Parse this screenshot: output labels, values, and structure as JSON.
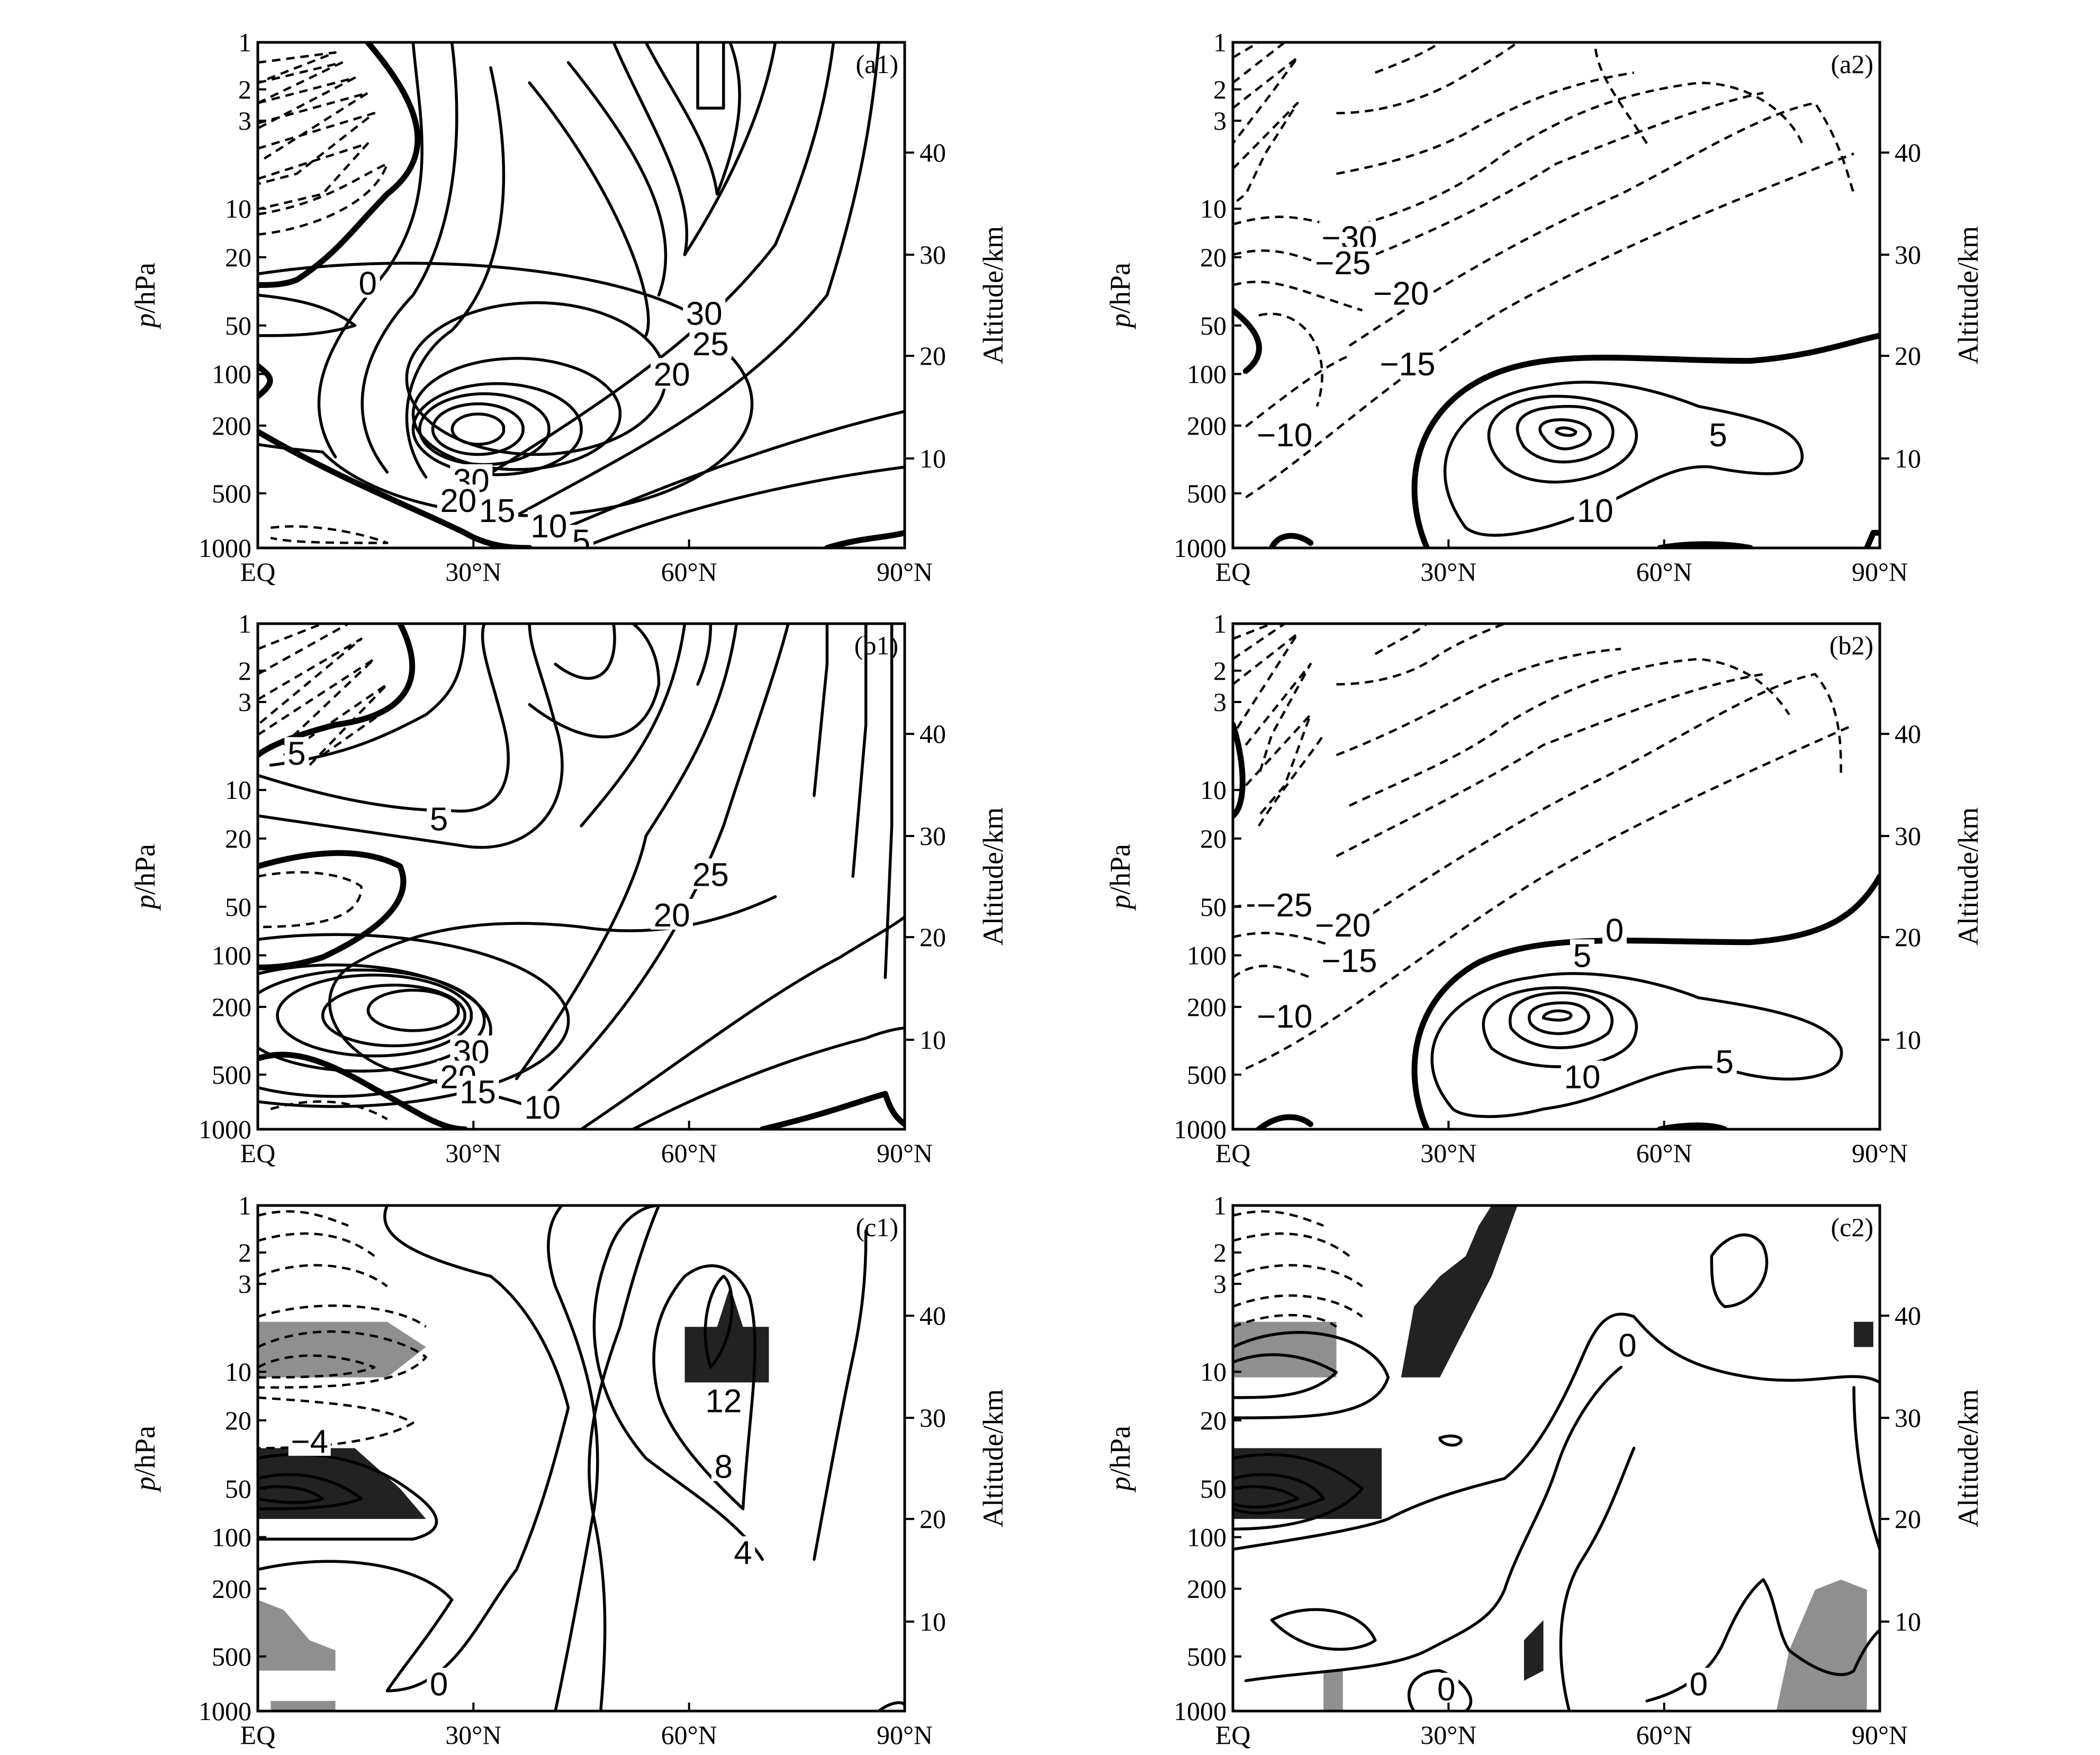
{
  "chart_data": [
    {
      "id": "a1",
      "type": "contour",
      "panel_label": "(a1)",
      "xlabel": "",
      "ylabel": "p/hPa",
      "y2label": "Altitude/km",
      "x_ticks": [
        "EQ",
        "30°N",
        "60°N",
        "90°N"
      ],
      "y_ticks": [
        "1",
        "2",
        "3",
        "10",
        "20",
        "50",
        "100",
        "200",
        "500",
        "1000"
      ],
      "y2_ticks": [
        "10",
        "20",
        "30",
        "40"
      ],
      "xlim": [
        0,
        90
      ],
      "ylim": [
        1000,
        1
      ],
      "y_scale": "log",
      "contour_interval": 5,
      "negative_style": "dashed",
      "zero_style": "thick",
      "contour_labels": [
        "0",
        "30",
        "25",
        "20",
        "30",
        "20",
        "15",
        "10",
        "5"
      ],
      "jet_max": {
        "lat": 30,
        "p": 200,
        "value_min": 30
      }
    },
    {
      "id": "a2",
      "type": "contour",
      "panel_label": "(a2)",
      "xlabel": "",
      "ylabel": "p/hPa",
      "y2label": "Altitude/km",
      "x_ticks": [
        "EQ",
        "30°N",
        "60°N",
        "90°N"
      ],
      "y_ticks": [
        "1",
        "2",
        "3",
        "10",
        "20",
        "50",
        "100",
        "200",
        "500",
        "1000"
      ],
      "y2_ticks": [
        "10",
        "20",
        "30",
        "40"
      ],
      "xlim": [
        0,
        90
      ],
      "ylim": [
        1000,
        1
      ],
      "y_scale": "log",
      "contour_interval": 5,
      "negative_style": "dashed",
      "zero_style": "thick",
      "contour_labels": [
        "−30",
        "−25",
        "−20",
        "−15",
        "−10",
        "5",
        "10"
      ],
      "jet_max": {
        "lat": 43,
        "p": 200,
        "value_min": 15
      }
    },
    {
      "id": "b1",
      "type": "contour",
      "panel_label": "(b1)",
      "xlabel": "",
      "ylabel": "p/hPa",
      "y2label": "Altitude/km",
      "x_ticks": [
        "EQ",
        "30°N",
        "60°N",
        "90°N"
      ],
      "y_ticks": [
        "1",
        "2",
        "3",
        "10",
        "20",
        "50",
        "100",
        "200",
        "500",
        "1000"
      ],
      "y2_ticks": [
        "10",
        "20",
        "30",
        "40"
      ],
      "xlim": [
        0,
        90
      ],
      "ylim": [
        1000,
        1
      ],
      "y_scale": "log",
      "contour_interval": 5,
      "negative_style": "dashed",
      "zero_style": "thick",
      "contour_labels": [
        "5",
        "5",
        "25",
        "20",
        "30",
        "20",
        "15",
        "10"
      ],
      "jet_max": {
        "lat": 30,
        "p": 200,
        "value_min": 30
      }
    },
    {
      "id": "b2",
      "type": "contour",
      "panel_label": "(b2)",
      "xlabel": "",
      "ylabel": "p/hPa",
      "y2label": "Altitude/km",
      "x_ticks": [
        "EQ",
        "30°N",
        "60°N",
        "90°N"
      ],
      "y_ticks": [
        "1",
        "2",
        "3",
        "10",
        "20",
        "50",
        "100",
        "200",
        "500",
        "1000"
      ],
      "y2_ticks": [
        "10",
        "20",
        "30",
        "40"
      ],
      "xlim": [
        0,
        90
      ],
      "ylim": [
        1000,
        1
      ],
      "y_scale": "log",
      "contour_interval": 5,
      "negative_style": "dashed",
      "zero_style": "thick",
      "contour_labels": [
        "−25",
        "−20",
        "−15",
        "−10",
        "0",
        "5",
        "10",
        "5"
      ],
      "jet_max": {
        "lat": 43,
        "p": 200,
        "value_min": 15
      }
    },
    {
      "id": "c1",
      "type": "contour",
      "panel_label": "(c1)",
      "xlabel": "",
      "ylabel": "p/hPa",
      "y2label": "Altitude/km",
      "x_ticks": [
        "EQ",
        "30°N",
        "60°N",
        "90°N"
      ],
      "y_ticks": [
        "1",
        "2",
        "3",
        "10",
        "20",
        "50",
        "100",
        "200",
        "500",
        "1000"
      ],
      "y2_ticks": [
        "10",
        "20",
        "30",
        "40"
      ],
      "xlim": [
        0,
        90
      ],
      "ylim": [
        1000,
        1
      ],
      "y_scale": "log",
      "contour_interval": 4,
      "negative_style": "dashed",
      "contour_labels": [
        "−4",
        "12",
        "8",
        "4",
        "0"
      ],
      "shading_colors": {
        "significant_positive": "#222222",
        "significant_negative": "#8f8f8f"
      }
    },
    {
      "id": "c2",
      "type": "contour",
      "panel_label": "(c2)",
      "xlabel": "",
      "ylabel": "p/hPa",
      "y2label": "Altitude/km",
      "x_ticks": [
        "EQ",
        "30°N",
        "60°N",
        "90°N"
      ],
      "y_ticks": [
        "1",
        "2",
        "3",
        "10",
        "20",
        "50",
        "100",
        "200",
        "500",
        "1000"
      ],
      "y2_ticks": [
        "10",
        "20",
        "30",
        "40"
      ],
      "xlim": [
        0,
        90
      ],
      "ylim": [
        1000,
        1
      ],
      "y_scale": "log",
      "contour_interval": 4,
      "negative_style": "dashed",
      "contour_labels": [
        "0",
        "0",
        "0"
      ],
      "shading_colors": {
        "significant_positive": "#222222",
        "significant_negative": "#8f8f8f"
      }
    }
  ]
}
